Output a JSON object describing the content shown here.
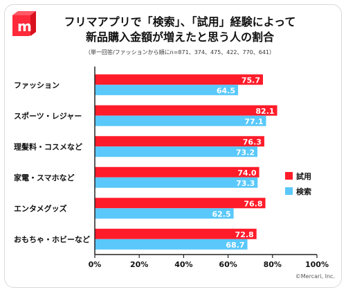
{
  "colors": {
    "trial": "#ff1c2a",
    "search": "#5ac8fa",
    "axis": "#222222",
    "text": "#111111"
  },
  "brand": {
    "logo_icon": "mercari-box-logo-icon",
    "logo_color": "#ff2a3a"
  },
  "title_lines": [
    "フリマアプリで「検索」、「試用」経験によって",
    "新品購入金額が増えたと思う人の割合"
  ],
  "subtitle": "（単一回答/ファッションから順にn=871、374、475、422、770、641）",
  "credit": "©Mercari, Inc.",
  "chart_data": {
    "type": "bar",
    "orientation": "horizontal",
    "categories": [
      "ファッション",
      "スポーツ・レジャー",
      "理髪料・コスメなど",
      "家電・スマホなど",
      "エンタメグッズ",
      "おもちゃ・ホビーなど"
    ],
    "series": [
      {
        "name": "試用",
        "color": "#ff1c2a",
        "values": [
          75.7,
          82.1,
          76.3,
          74.0,
          76.8,
          72.8
        ],
        "labels": [
          "75.7",
          "82.1",
          "76.3",
          "74.0",
          "76.8",
          "72.8"
        ]
      },
      {
        "name": "検索",
        "color": "#5ac8fa",
        "values": [
          64.5,
          77.1,
          73.2,
          73.3,
          62.5,
          68.7
        ],
        "labels": [
          "64.5",
          "77.1",
          "73.2",
          "73.3",
          "62.5",
          "68.7"
        ]
      }
    ],
    "xlim": [
      0,
      100
    ],
    "xticks": [
      "0%",
      "20%",
      "40%",
      "60%",
      "80%",
      "100%"
    ],
    "grid": false,
    "legend_position": "right"
  }
}
